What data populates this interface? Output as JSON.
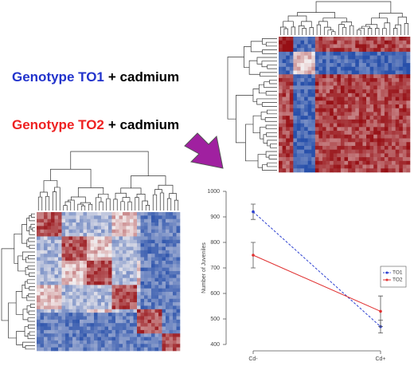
{
  "labels": [
    {
      "genotype": "Genotype TO1",
      "rest": "+ cadmium"
    },
    {
      "genotype": "Genotype TO2",
      "rest": "+ cadmium"
    }
  ],
  "chart_data": {
    "type": "line",
    "categories": [
      "Cd-",
      "Cd+"
    ],
    "y_label": "Number of Juveniles",
    "ylim": [
      400,
      1000
    ],
    "yticks": [
      400,
      500,
      600,
      700,
      800,
      900,
      1000
    ],
    "legend": "right",
    "series": [
      {
        "name": "TO1",
        "color": "#2b3fd0",
        "dashed": true,
        "values": [
          920,
          470
        ],
        "errors": [
          30,
          25
        ]
      },
      {
        "name": "TO2",
        "color": "#e03030",
        "dashed": false,
        "values": [
          750,
          530
        ],
        "errors": [
          50,
          60
        ]
      }
    ]
  }
}
